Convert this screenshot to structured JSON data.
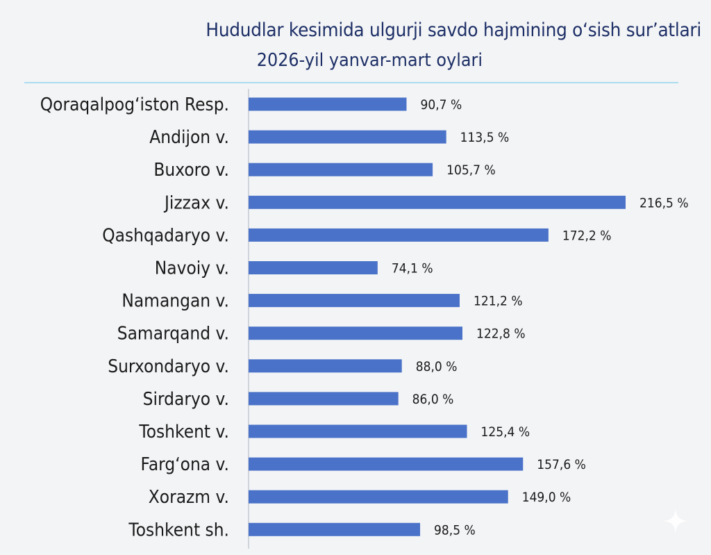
{
  "chart_data": {
    "type": "bar",
    "orientation": "horizontal",
    "title": "Hududlar kesimida ulgurji savdo hajmining o‘sish sur’atlari",
    "subtitle": "2026-yil yanvar-mart oylari",
    "categories": [
      "Qoraqalpog‘iston Resp.",
      "Andijon v.",
      "Buxoro v.",
      "Jizzax v.",
      "Qashqadaryo v.",
      "Navoiy v.",
      "Namangan v.",
      "Samarqand v.",
      "Surxondaryo v.",
      "Sirdaryo v.",
      "Toshkent v.",
      "Farg‘ona v.",
      "Xorazm v.",
      "Toshkent sh."
    ],
    "values": [
      90.7,
      113.5,
      105.7,
      216.5,
      172.2,
      74.1,
      121.2,
      122.8,
      88.0,
      86.0,
      125.4,
      157.6,
      149.0,
      98.5
    ],
    "value_labels": [
      "90,7 %",
      "113,5 %",
      "105,7 %",
      "216,5 %",
      "172,2 %",
      "74,1 %",
      "121,2 %",
      "122,8 %",
      "88,0 %",
      "86,0 %",
      "125,4 %",
      "157,6 %",
      "149,0 %",
      "98,5 %"
    ],
    "xlim": [
      0,
      216.5
    ],
    "grid": false,
    "legend": "none",
    "bar_color": "#4a72c8",
    "axis_color": "#cfd3da"
  }
}
